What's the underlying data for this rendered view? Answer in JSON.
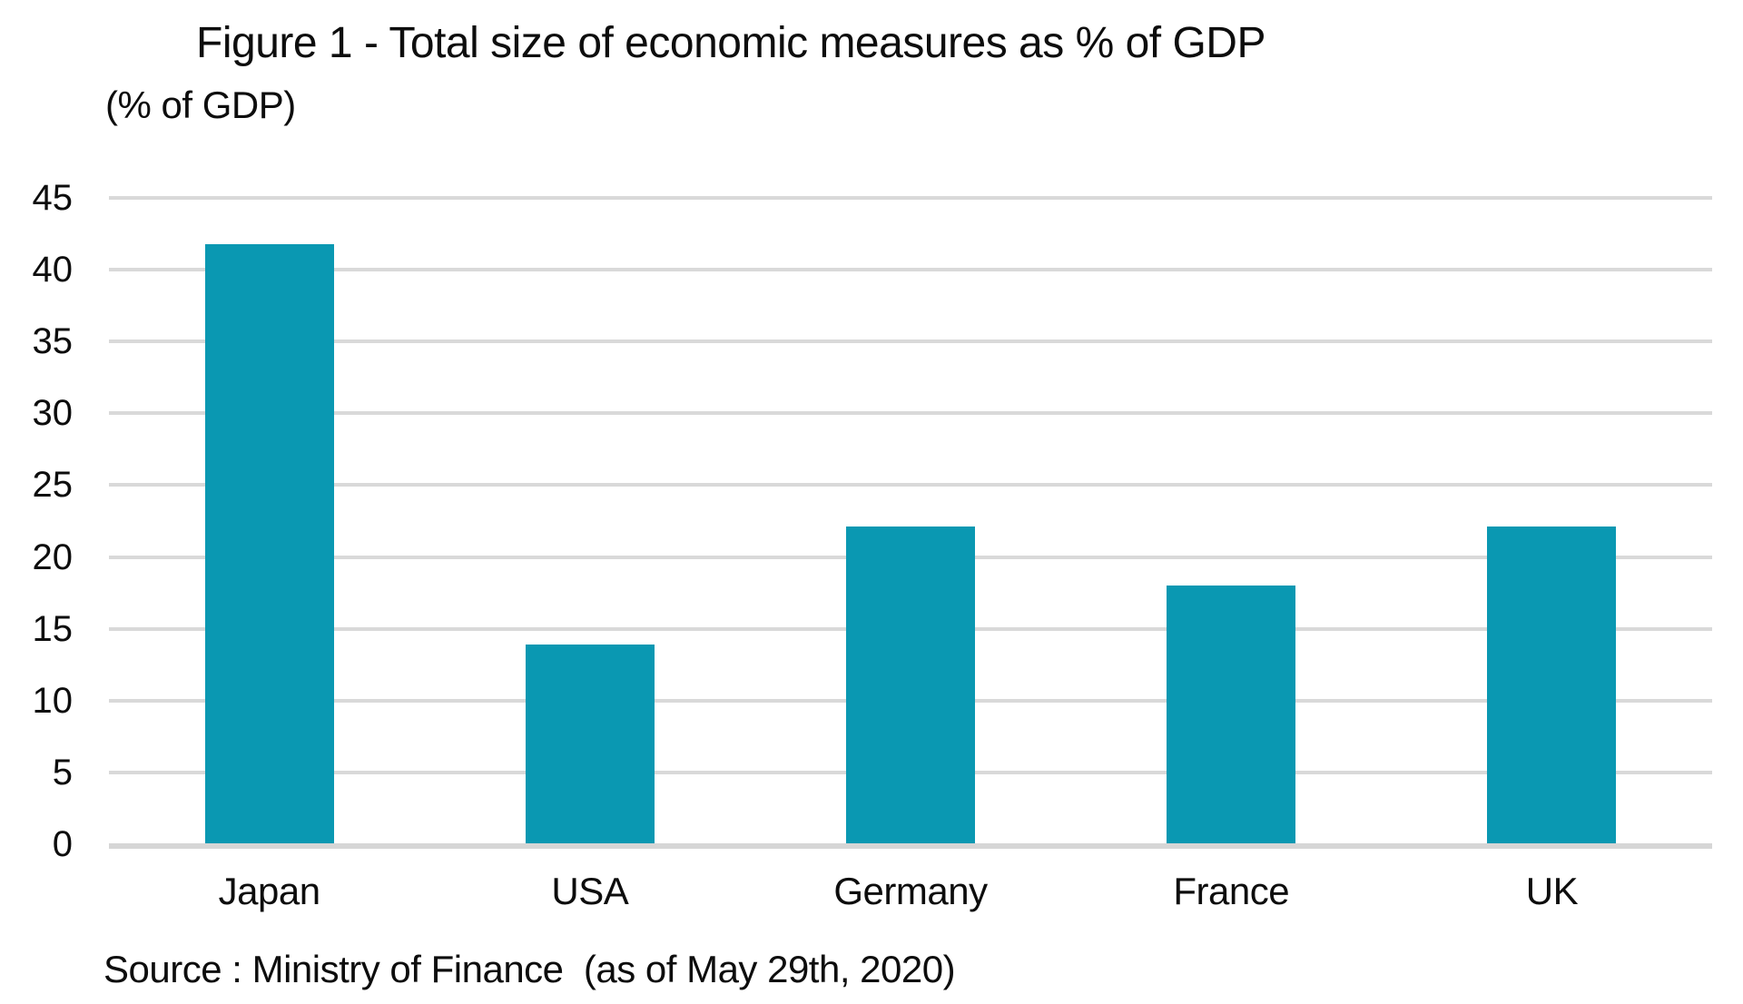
{
  "figure": {
    "title": "Figure 1 - Total size of economic measures as % of GDP",
    "unit_label": "(% of GDP)",
    "source_note": "Source : Ministry of Finance  (as of May 29th, 2020)"
  },
  "chart_data": {
    "type": "bar",
    "title": "Figure 1 - Total size of economic measures as % of GDP",
    "subtitle": "",
    "categories": [
      "Japan",
      "USA",
      "Germany",
      "France",
      "UK"
    ],
    "values": [
      41.8,
      13.9,
      22.1,
      18.0,
      22.1
    ],
    "xlabel": "",
    "ylabel": "(% of GDP)",
    "ylim": [
      0,
      45
    ],
    "ytick_step": 5,
    "yticks": [
      0,
      5,
      10,
      15,
      20,
      25,
      30,
      35,
      40,
      45
    ],
    "grid": "horizontal-only",
    "legend_position": "none",
    "annotations": [
      "Source : Ministry of Finance (as of May 29th, 2020)"
    ],
    "bar_color": "#0a98b2",
    "gridline_color": "#d9d9d9",
    "axis_line_color": "#d6d6d6",
    "text_color": "#0d0d0d",
    "background_color": "#ffffff"
  }
}
